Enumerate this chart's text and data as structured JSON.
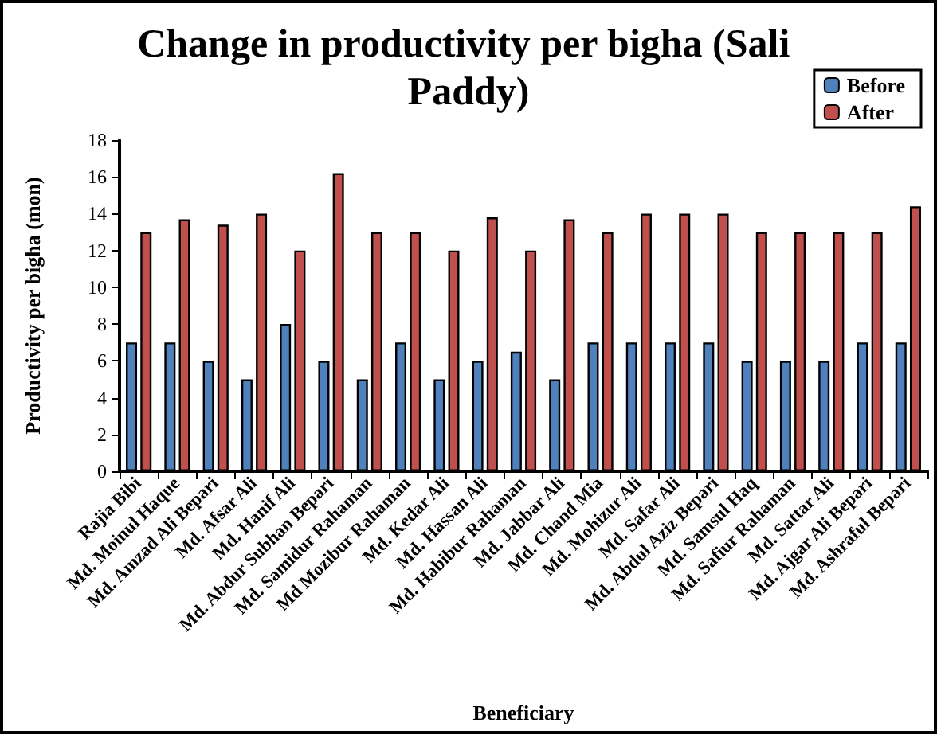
{
  "chart_data": {
    "type": "bar",
    "title": "Change in productivity per bigha (Sali Paddy)",
    "xlabel": "Beneficiary",
    "ylabel": "Productivity per bigha (mon)",
    "categories": [
      "Rajia Bibi",
      "Md. Moinul Haque",
      "Md. Amzad Ali Bepari",
      "Md. Afsar Ali",
      "Md. Hanif Ali",
      "Md. Abdur Subhan Bepari",
      "Md. Samidur Rahaman",
      "Md Mozibur Rahaman",
      "Md. Kedar Ali",
      "Md. Hassan Ali",
      "Md. Habibur Rahaman",
      "Md. Jabbar Ali",
      "Md. Chand Mia",
      "Md. Mohizur Ali",
      "Md. Safar Ali",
      "Md. Abdul Aziz Bepari",
      "Md. Samsul Haq",
      "Md. Safiur Rahaman",
      "Md. Sattar Ali",
      "Md. Ajgar Ali Bepari",
      "Md. Ashraful Bepari"
    ],
    "series": [
      {
        "name": "Before",
        "color": "#4f81bd",
        "values": [
          7,
          7,
          6,
          5,
          8,
          6,
          5,
          7,
          5,
          6,
          6.5,
          5,
          7,
          7,
          7,
          7,
          6,
          6,
          6,
          7,
          7
        ]
      },
      {
        "name": "After",
        "color": "#c0504d",
        "values": [
          13,
          13.7,
          13.4,
          14,
          12,
          16.2,
          13,
          13,
          12,
          13.8,
          12,
          13.7,
          13,
          14,
          14,
          14,
          13,
          13,
          13,
          13,
          14.4
        ]
      }
    ],
    "ylim": [
      0,
      18
    ],
    "yticks": [
      0,
      2,
      4,
      6,
      8,
      10,
      12,
      14,
      16,
      18
    ],
    "grid": false,
    "legend": "top right"
  }
}
